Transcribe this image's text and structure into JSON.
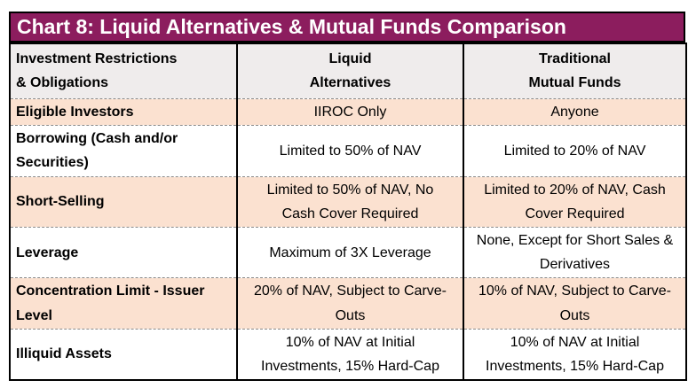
{
  "title": "Chart 8: Liquid Alternatives & Mutual Funds Comparison",
  "table": {
    "headers": [
      "Investment Restrictions\n& Obligations",
      "Liquid\nAlternatives",
      "Traditional\nMutual Funds"
    ],
    "rows": [
      {
        "label": "Eligible Investors",
        "liquid_alternatives": "IIROC Only",
        "traditional_mutual_funds": "Anyone"
      },
      {
        "label": "Borrowing (Cash and/or\nSecurities)",
        "liquid_alternatives": "Limited to 50% of NAV",
        "traditional_mutual_funds": "Limited to 20% of NAV"
      },
      {
        "label": "Short-Selling",
        "liquid_alternatives": "Limited to 50% of NAV, No\nCash Cover Required",
        "traditional_mutual_funds": "Limited to 20% of NAV, Cash\nCover Required"
      },
      {
        "label": "Leverage",
        "liquid_alternatives": "Maximum of 3X Leverage",
        "traditional_mutual_funds": "None, Except for Short Sales &\nDerivatives"
      },
      {
        "label": "Concentration Limit - Issuer\nLevel",
        "liquid_alternatives": "20% of NAV, Subject to Carve-\nOuts",
        "traditional_mutual_funds": "10% of NAV, Subject to Carve-\nOuts"
      },
      {
        "label": "Illiquid Assets",
        "liquid_alternatives": "10% of NAV at Initial\nInvestments, 15% Hard-Cap",
        "traditional_mutual_funds": "10% of NAV at Initial\nInvestments, 15% Hard-Cap"
      }
    ]
  },
  "chart_data": {
    "type": "table",
    "title": "Chart 8: Liquid Alternatives & Mutual Funds Comparison",
    "columns": [
      "Investment Restrictions & Obligations",
      "Liquid Alternatives",
      "Traditional Mutual Funds"
    ],
    "rows": [
      [
        "Eligible Investors",
        "IIROC Only",
        "Anyone"
      ],
      [
        "Borrowing (Cash and/or Securities)",
        "Limited to 50% of NAV",
        "Limited to 20% of NAV"
      ],
      [
        "Short-Selling",
        "Limited to 50% of NAV, No Cash Cover Required",
        "Limited to 20% of NAV, Cash Cover Required"
      ],
      [
        "Leverage",
        "Maximum of 3X Leverage",
        "None, Except for Short Sales & Derivatives"
      ],
      [
        "Concentration Limit - Issuer Level",
        "20% of NAV, Subject to Carve-Outs",
        "10% of NAV, Subject to Carve-Outs"
      ],
      [
        "Illiquid Assets",
        "10% of NAV at Initial Investments, 15% Hard-Cap",
        "10% of NAV at Initial Investments, 15% Hard-Cap"
      ]
    ]
  },
  "colors": {
    "title_bar_bg": "#8C1D5E",
    "title_text": "#FFFFFF",
    "header_row_bg": "#EFECEC",
    "shaded_row_bg": "#FBE1D0",
    "unshaded_row_bg": "#FFFFFF",
    "table_border": "#000000",
    "row_divider": "#8A8A8A",
    "text": "#000000"
  }
}
